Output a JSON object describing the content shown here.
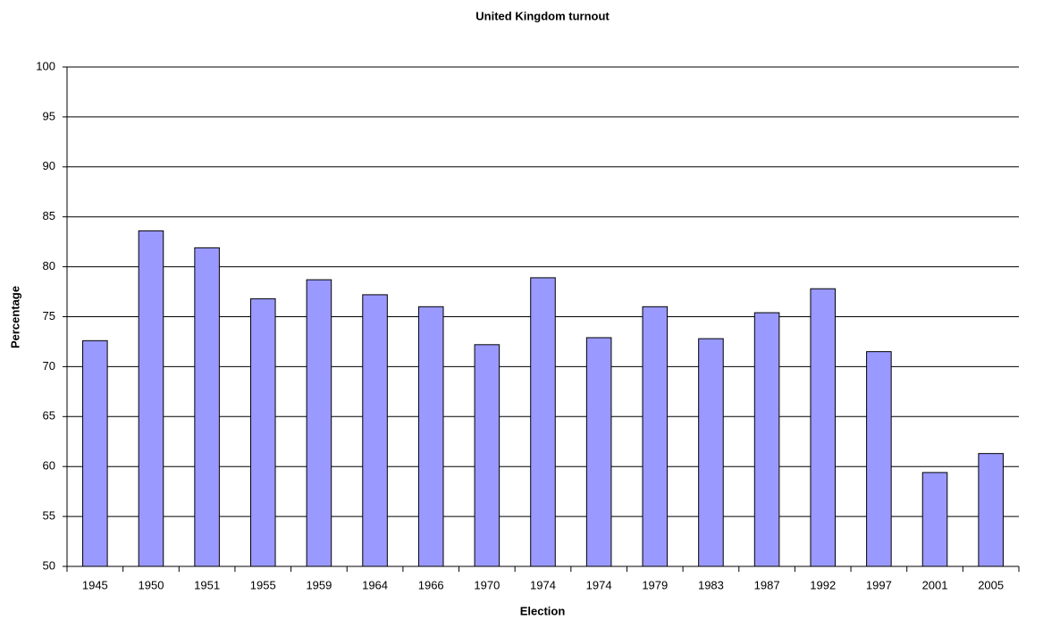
{
  "chart_data": {
    "type": "bar",
    "title": "United Kingdom turnout",
    "x_label": "Election",
    "y_label": "Percentage",
    "categories": [
      "1945",
      "1950",
      "1951",
      "1955",
      "1959",
      "1964",
      "1966",
      "1970",
      "1974",
      "1974",
      "1979",
      "1983",
      "1987",
      "1992",
      "1997",
      "2001",
      "2005"
    ],
    "values": [
      72.6,
      83.6,
      81.9,
      76.8,
      78.7,
      77.2,
      76.0,
      72.2,
      78.9,
      72.9,
      76.0,
      72.8,
      75.4,
      77.8,
      71.5,
      59.4,
      61.3
    ],
    "color": "#9999ff",
    "ylim": [
      50,
      100
    ],
    "yticks": [
      50,
      55,
      60,
      65,
      70,
      75,
      80,
      85,
      90,
      95,
      100
    ],
    "grid": true
  }
}
